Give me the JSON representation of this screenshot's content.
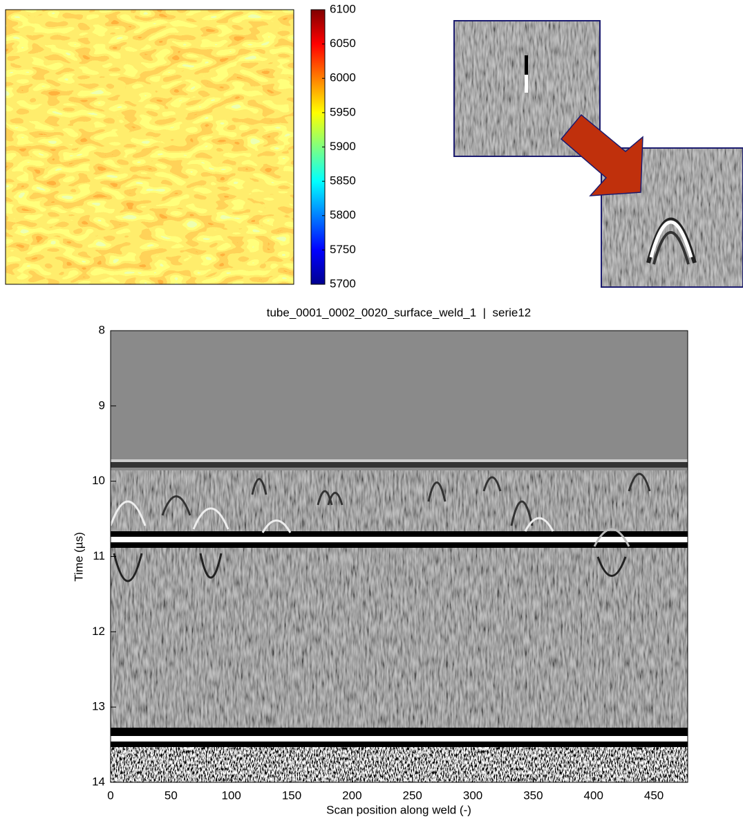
{
  "chart_data": [
    {
      "type": "heatmap",
      "colormap": "jet",
      "ylim": [
        5700,
        6100
      ],
      "yticks": [
        5700,
        5750,
        5800,
        5850,
        5900,
        5950,
        6000,
        6050,
        6100
      ]
    },
    {
      "type": "image",
      "colormap": "gray",
      "title": "tube_0001_0002_0020_surface_weld_1  |  serie12",
      "xlabel": "Scan position along weld (-)",
      "ylabel": "Time (µs)",
      "xlim": [
        0,
        478
      ],
      "xticks": [
        0,
        50,
        100,
        150,
        200,
        250,
        300,
        350,
        400,
        450
      ],
      "ylim": [
        8,
        14
      ],
      "y_inverted": true,
      "yticks": [
        8,
        9,
        10,
        11,
        12,
        13,
        14
      ]
    }
  ]
}
